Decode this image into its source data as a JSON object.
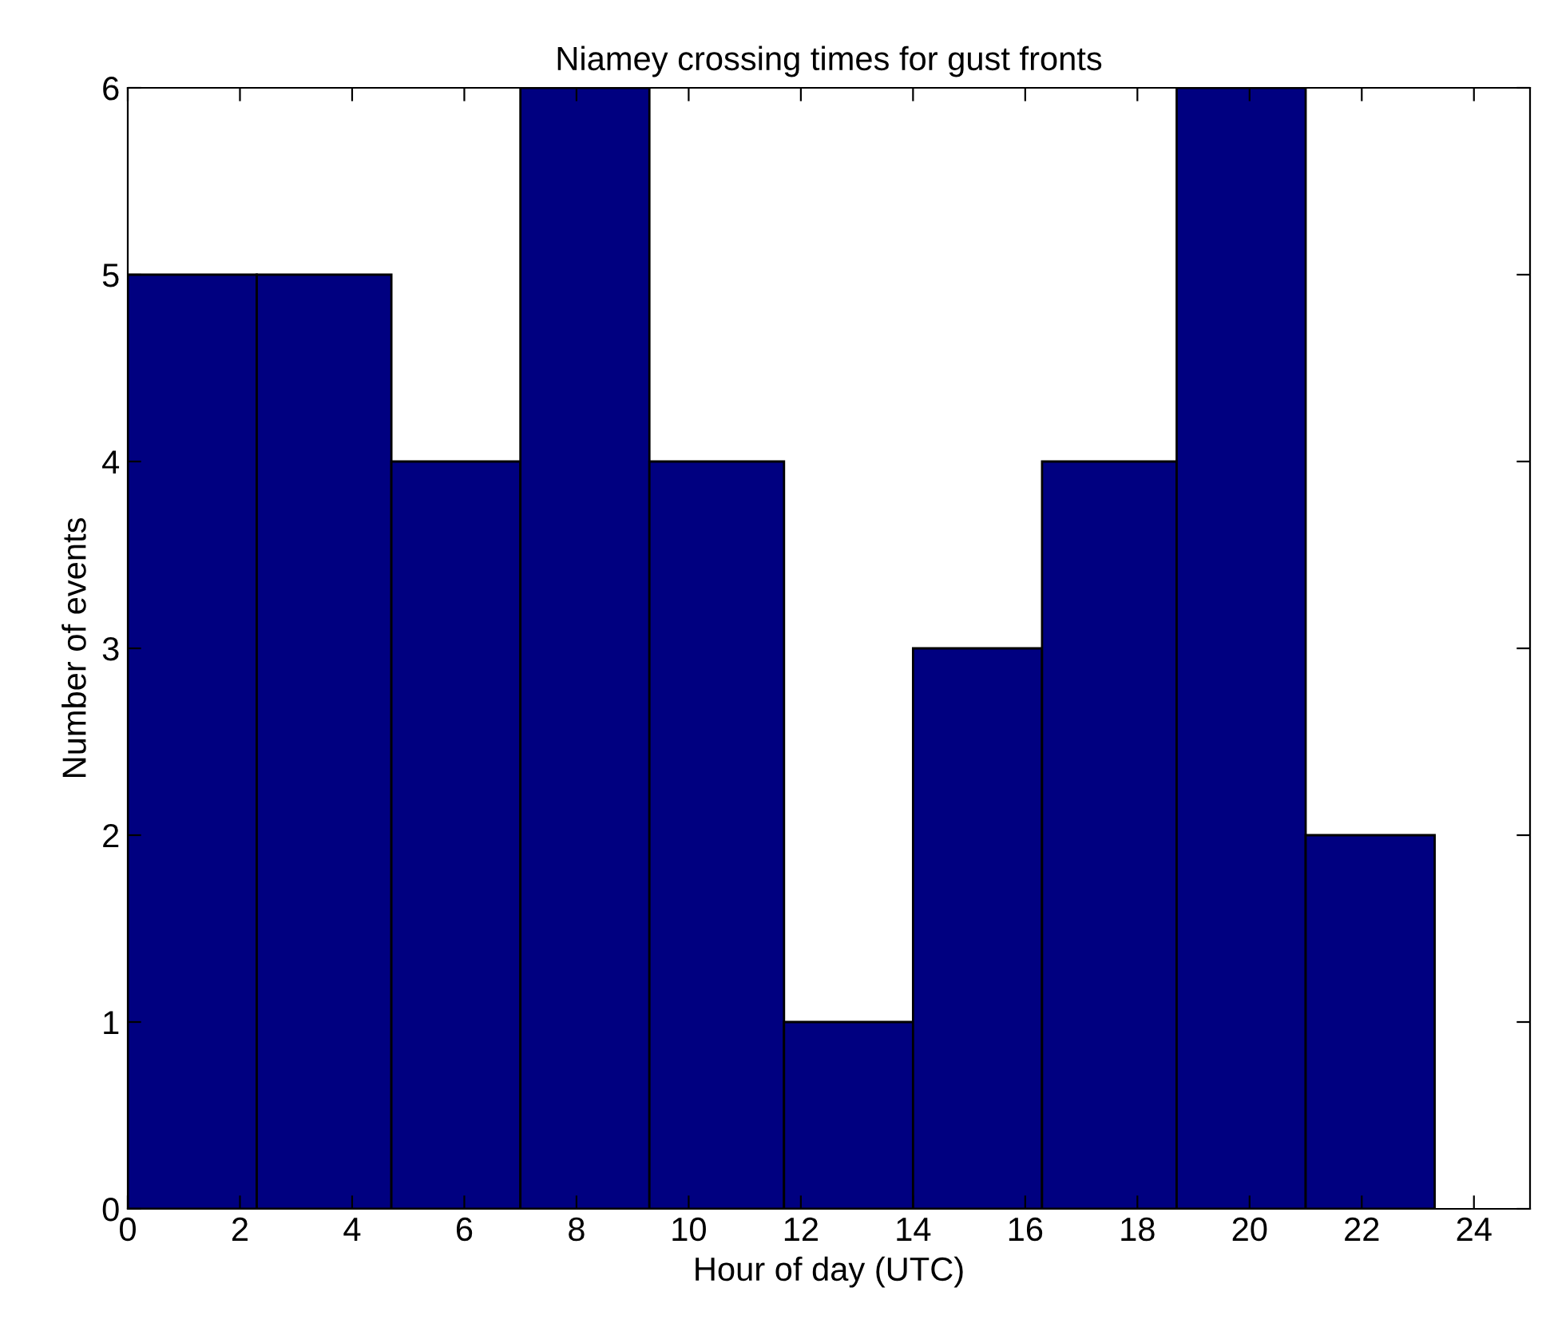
{
  "chart_data": {
    "type": "histogram",
    "title": "Niamey crossing times for gust fronts",
    "xlabel": "Hour of day (UTC)",
    "ylabel": "Number of events",
    "bins": [
      0,
      2.3,
      4.7,
      7,
      9.3,
      11.7,
      14,
      16.3,
      18.7,
      21,
      23.3
    ],
    "values": [
      5,
      5,
      4,
      6,
      4,
      1,
      3,
      4,
      6,
      2
    ],
    "color": "#000080",
    "xlim": [
      0,
      25
    ],
    "ylim": [
      0,
      6
    ],
    "xticks": [
      0,
      2,
      4,
      6,
      8,
      10,
      12,
      14,
      16,
      18,
      20,
      22,
      24
    ],
    "yticks": [
      0,
      1,
      2,
      3,
      4,
      5,
      6
    ],
    "grid": false,
    "legend": false
  }
}
